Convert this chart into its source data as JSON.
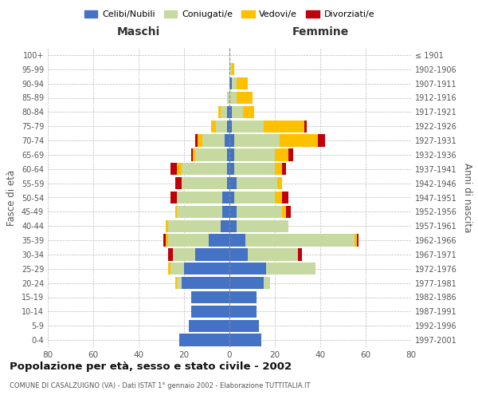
{
  "age_groups": [
    "0-4",
    "5-9",
    "10-14",
    "15-19",
    "20-24",
    "25-29",
    "30-34",
    "35-39",
    "40-44",
    "45-49",
    "50-54",
    "55-59",
    "60-64",
    "65-69",
    "70-74",
    "75-79",
    "80-84",
    "85-89",
    "90-94",
    "95-99",
    "100+"
  ],
  "birth_years": [
    "1997-2001",
    "1992-1996",
    "1987-1991",
    "1982-1986",
    "1977-1981",
    "1972-1976",
    "1967-1971",
    "1962-1966",
    "1957-1961",
    "1952-1956",
    "1947-1951",
    "1942-1946",
    "1937-1941",
    "1932-1936",
    "1927-1931",
    "1922-1926",
    "1917-1921",
    "1912-1916",
    "1907-1911",
    "1902-1906",
    "≤ 1901"
  ],
  "male": {
    "celibi": [
      22,
      18,
      17,
      17,
      21,
      20,
      15,
      9,
      4,
      3,
      3,
      1,
      1,
      1,
      2,
      1,
      1,
      0,
      0,
      0,
      0
    ],
    "coniugati": [
      0,
      0,
      0,
      0,
      2,
      6,
      10,
      18,
      23,
      20,
      20,
      20,
      20,
      14,
      10,
      5,
      3,
      1,
      0,
      0,
      0
    ],
    "vedovi": [
      0,
      0,
      0,
      0,
      1,
      1,
      0,
      1,
      1,
      1,
      0,
      0,
      2,
      1,
      2,
      2,
      1,
      0,
      0,
      0,
      0
    ],
    "divorziati": [
      0,
      0,
      0,
      0,
      0,
      0,
      2,
      1,
      0,
      0,
      3,
      3,
      3,
      1,
      1,
      0,
      0,
      0,
      0,
      0,
      0
    ]
  },
  "female": {
    "nubili": [
      14,
      13,
      12,
      12,
      15,
      16,
      8,
      7,
      3,
      3,
      2,
      3,
      2,
      2,
      2,
      1,
      1,
      0,
      1,
      0,
      0
    ],
    "coniugate": [
      0,
      0,
      0,
      0,
      3,
      22,
      22,
      48,
      23,
      20,
      18,
      18,
      18,
      18,
      20,
      14,
      5,
      3,
      2,
      1,
      0
    ],
    "vedove": [
      0,
      0,
      0,
      0,
      0,
      0,
      0,
      1,
      0,
      2,
      3,
      2,
      3,
      6,
      17,
      18,
      5,
      7,
      5,
      1,
      0
    ],
    "divorziate": [
      0,
      0,
      0,
      0,
      0,
      0,
      2,
      1,
      0,
      2,
      3,
      0,
      2,
      2,
      3,
      1,
      0,
      0,
      0,
      0,
      0
    ]
  },
  "colors": {
    "celibi_nubili": "#4472c4",
    "coniugati": "#c5d9a0",
    "vedovi": "#ffc000",
    "divorziati": "#c0000b"
  },
  "title": "Popolazione per età, sesso e stato civile - 2002",
  "subtitle": "COMUNE DI CASALZUIGNO (VA) - Dati ISTAT 1° gennaio 2002 - Elaborazione TUTTITALIA.IT",
  "ylabel_left": "Fasce di età",
  "ylabel_right": "Anni di nascita",
  "xlabel_left": "Maschi",
  "xlabel_right": "Femmine",
  "xlim": 80,
  "legend_labels": [
    "Celibi/Nubili",
    "Coniugati/e",
    "Vedovi/e",
    "Divorziati/e"
  ],
  "background_color": "#ffffff",
  "bar_height": 0.85
}
